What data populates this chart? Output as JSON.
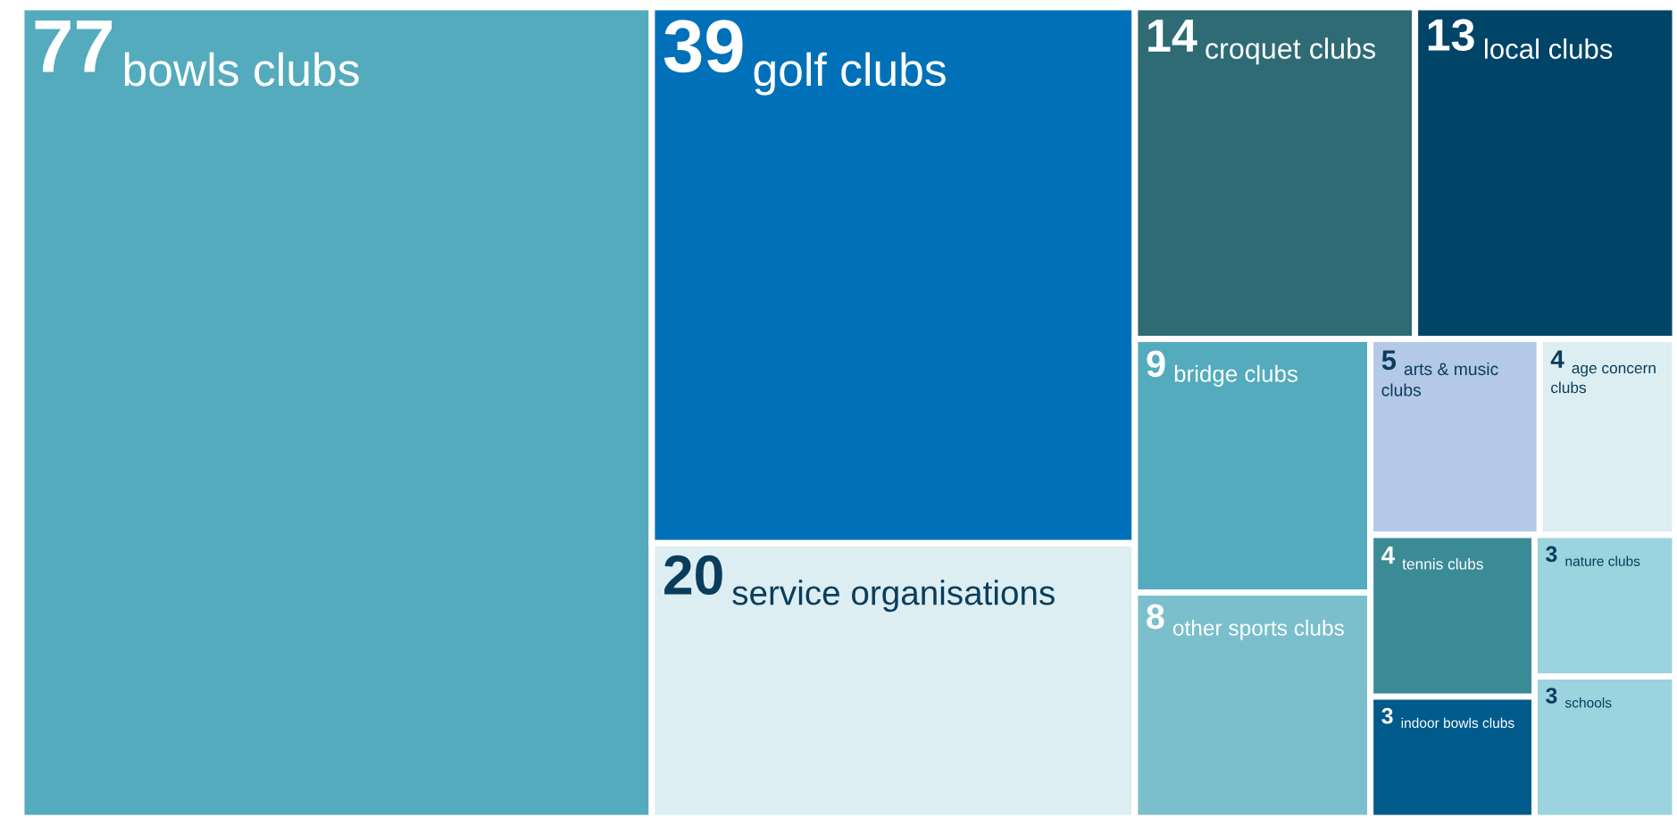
{
  "chart_data": {
    "type": "other",
    "data_labels": true,
    "categories": [
      "bowls clubs",
      "golf clubs",
      "service organisations",
      "croquet clubs",
      "local clubs",
      "bridge clubs",
      "other sports clubs",
      "arts & music clubs",
      "age concern clubs",
      "tennis clubs",
      "indoor bowls clubs",
      "nature clubs",
      "schools"
    ],
    "values": [
      77,
      39,
      20,
      14,
      13,
      9,
      8,
      5,
      4,
      4,
      3,
      3,
      3
    ],
    "colors": [
      "#53abbd",
      "#0071b8",
      "#dceef2",
      "#2e6b75",
      "#004468",
      "#53abbd",
      "#7bbfcc",
      "#b4c8e8",
      "#dceef2",
      "#3b8b97",
      "#005a8c",
      "#9bd3de",
      "#9bd3de"
    ]
  }
}
